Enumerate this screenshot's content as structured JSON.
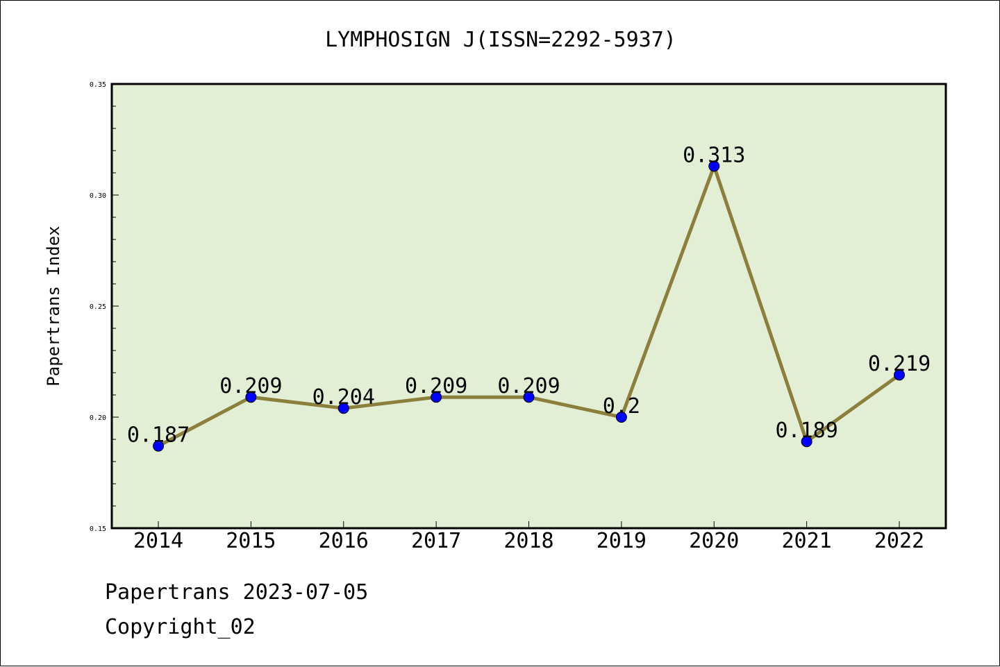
{
  "chart_data": {
    "type": "line",
    "title": "LYMPHOSIGN J(ISSN=2292-5937)",
    "xlabel": "",
    "ylabel": "Papertrans Index",
    "categories": [
      "2014",
      "2015",
      "2016",
      "2017",
      "2018",
      "2019",
      "2020",
      "2021",
      "2022"
    ],
    "series": [
      {
        "values": [
          0.187,
          0.209,
          0.204,
          0.209,
          0.209,
          0.2,
          0.313,
          0.189,
          0.219
        ],
        "labels": [
          "0.187",
          "0.209",
          "0.204",
          "0.209",
          "0.209",
          "0.2",
          "0.313",
          "0.189",
          "0.219"
        ]
      }
    ],
    "ylim": [
      0.15,
      0.35
    ],
    "yticks": [
      "0.15",
      "0.20",
      "0.25",
      "0.30",
      "0.35"
    ],
    "grid": false,
    "colors": {
      "plot_background": "#e2efd5",
      "line": "#8c7f3c",
      "marker": "#0000ff"
    }
  },
  "footer": {
    "line1": "Papertrans 2023-07-05",
    "line2": "Copyright_02"
  }
}
